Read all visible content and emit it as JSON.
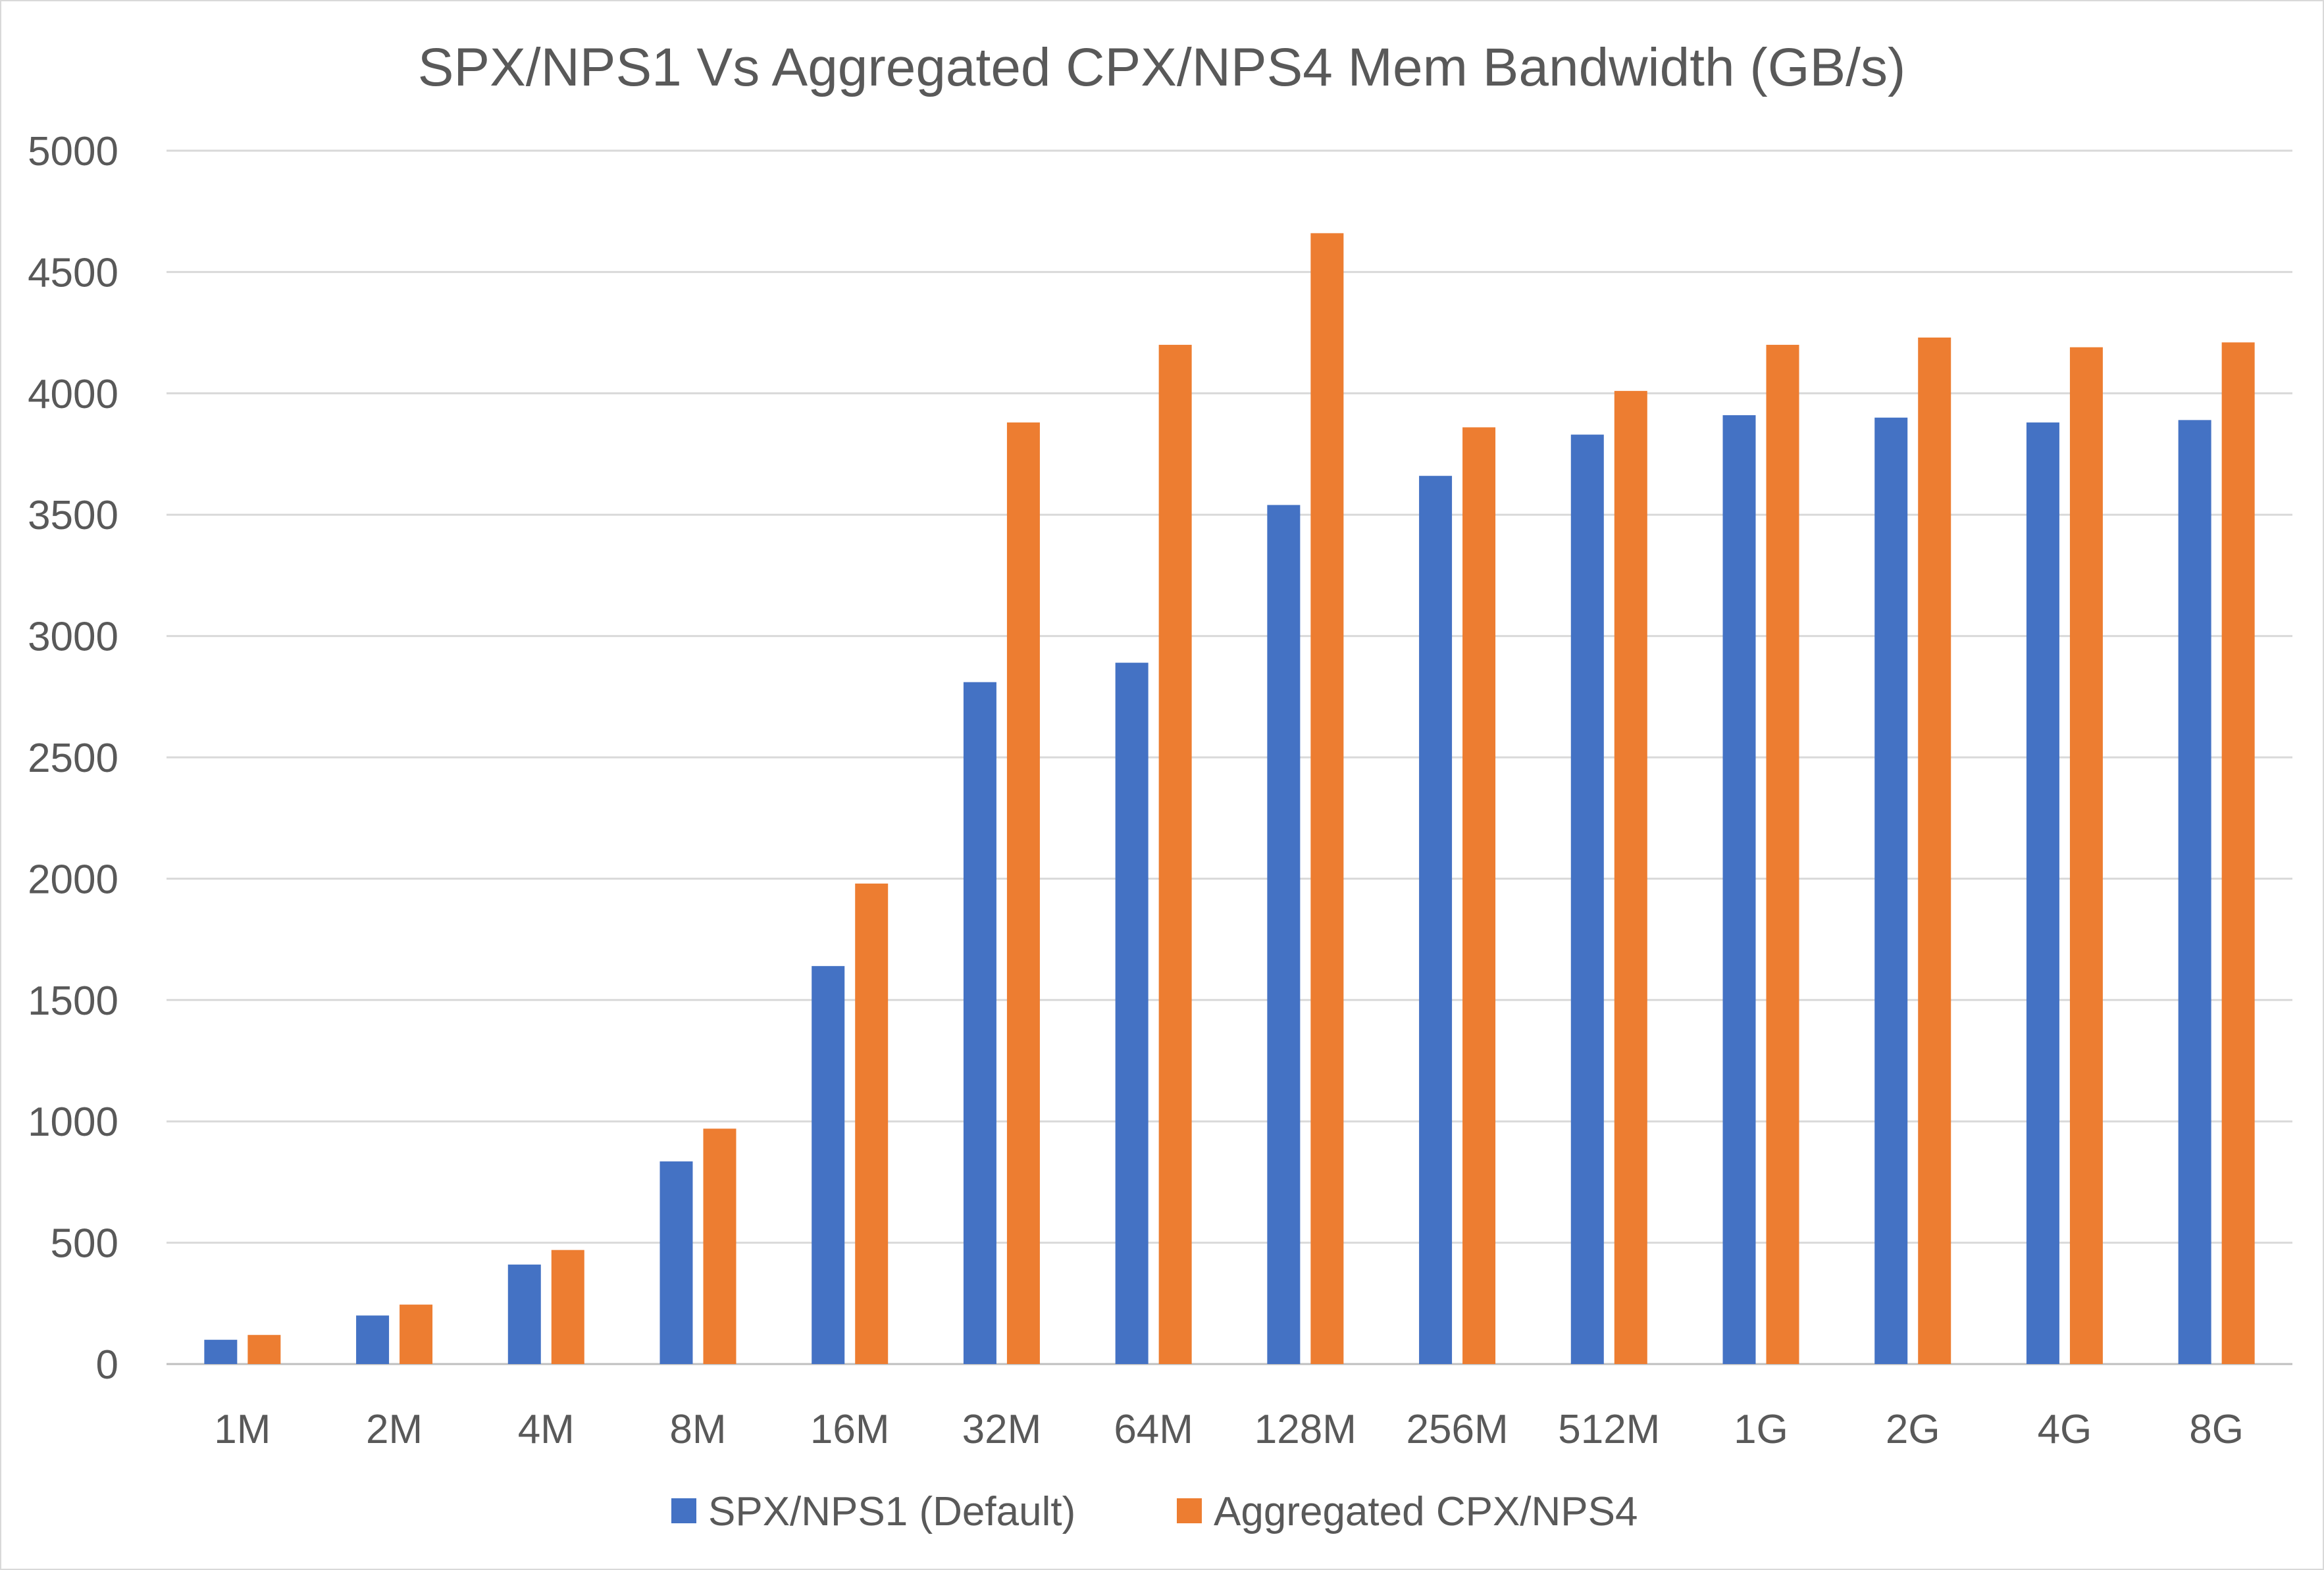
{
  "chart_data": {
    "type": "bar",
    "title": "SPX/NPS1 Vs Aggregated CPX/NPS4 Mem Bandwidth (GB/s)",
    "xlabel": "",
    "ylabel": "",
    "categories": [
      "1M",
      "2M",
      "4M",
      "8M",
      "16M",
      "32M",
      "64M",
      "128M",
      "256M",
      "512M",
      "1G",
      "2G",
      "4G",
      "8G"
    ],
    "series": [
      {
        "name": "SPX/NPS1 (Default)",
        "color": "#4472c4",
        "values": [
          100,
          200,
          410,
          835,
          1640,
          2810,
          2890,
          3540,
          3660,
          3830,
          3910,
          3900,
          3880,
          3890
        ]
      },
      {
        "name": "Aggregated CPX/NPS4",
        "color": "#ed7d31",
        "values": [
          120,
          245,
          470,
          970,
          1980,
          3880,
          4200,
          4660,
          3860,
          4010,
          4200,
          4230,
          4190,
          4210
        ]
      }
    ],
    "ylim": [
      0,
      5000
    ],
    "yticks": [
      0,
      500,
      1000,
      1500,
      2000,
      2500,
      3000,
      3500,
      4000,
      4500,
      5000
    ],
    "grid": true,
    "legend_position": "bottom"
  }
}
